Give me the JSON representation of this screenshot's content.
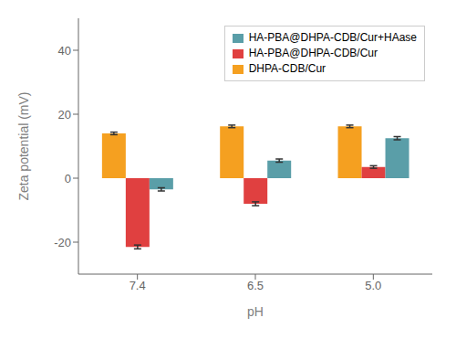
{
  "chart_data": {
    "type": "bar",
    "categories": [
      "7.4",
      "6.5",
      "5.0"
    ],
    "series": [
      {
        "name": "DHPA-CDB/Cur",
        "color": "#f5a020",
        "values": [
          14.0,
          16.2,
          16.2
        ],
        "errors": [
          0.4,
          0.4,
          0.4
        ]
      },
      {
        "name": "HA-PBA@DHPA-CDB/Cur",
        "color": "#e04040",
        "values": [
          -21.5,
          -8.0,
          3.5
        ],
        "errors": [
          0.6,
          0.6,
          0.4
        ]
      },
      {
        "name": "HA-PBA@DHPA-CDB/Cur+HAase",
        "color": "#5a9ea8",
        "values": [
          -3.5,
          5.5,
          12.5
        ],
        "errors": [
          0.5,
          0.5,
          0.5
        ]
      }
    ],
    "xlabel": "pH",
    "ylabel": "Zeta potential (mV)",
    "ylim": [
      -30,
      50
    ],
    "yticks": [
      -20,
      0,
      20,
      40
    ],
    "legend": "upper right",
    "grid": false
  }
}
